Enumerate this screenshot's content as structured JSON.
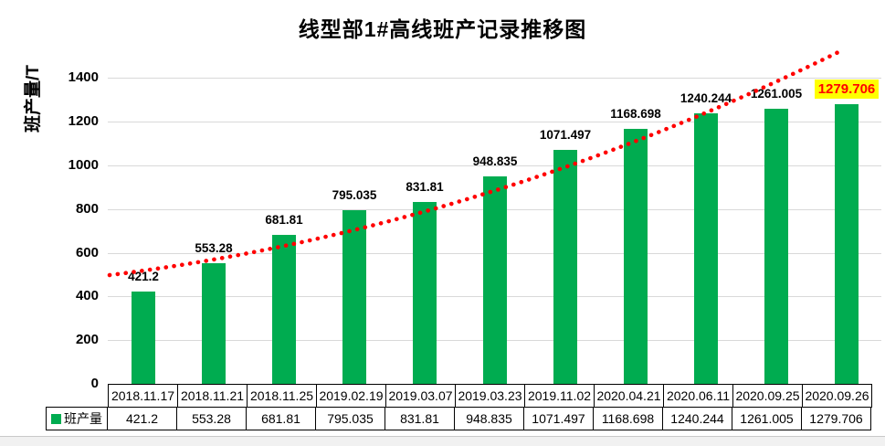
{
  "title": "线型部1#高线班产记录推移图",
  "y_axis": {
    "label": "班产量/T",
    "ticks": [
      0,
      200,
      400,
      600,
      800,
      1000,
      1200,
      1400
    ]
  },
  "legend": {
    "label": "班产量"
  },
  "colors": {
    "bar": "#00AC50",
    "trendline": "#FF0000",
    "gridline": "#D9D9D9",
    "highlight_bg": "#FFFF00",
    "highlight_text": "#FF0000"
  },
  "chart_data": {
    "type": "bar",
    "title": "线型部1#高线班产记录推移图",
    "xlabel": "",
    "ylabel": "班产量/T",
    "ylim": [
      0,
      1400
    ],
    "yticks": [
      0,
      200,
      400,
      600,
      800,
      1000,
      1200,
      1400
    ],
    "grid": "horizontal",
    "legend_position": "bottom-left-of-data-table",
    "categories": [
      "2018.11.17",
      "2018.11.21",
      "2018.11.25",
      "2019.02.19",
      "2019.03.07",
      "2019.03.23",
      "2019.11.02",
      "2020.04.21",
      "2020.06.11",
      "2020.09.25",
      "2020.09.26"
    ],
    "series": [
      {
        "name": "班产量",
        "values": [
          421.2,
          553.28,
          681.81,
          795.035,
          831.81,
          948.835,
          1071.497,
          1168.698,
          1240.244,
          1261.005,
          1279.706
        ]
      }
    ],
    "data_labels": [
      "421.2",
      "553.28",
      "681.81",
      "795.035",
      "831.81",
      "948.835",
      "1071.497",
      "1168.698",
      "1240.244",
      "1261.005",
      "1279.706"
    ],
    "trendline": {
      "style": "dotted",
      "color": "#FF0000",
      "shape": "exponential-rising"
    },
    "highlighted_label": {
      "category": "2020.09.26",
      "value": 1279.706,
      "background": "#FFFF00",
      "text_color": "#FF0000"
    },
    "data_table_shown": true
  }
}
